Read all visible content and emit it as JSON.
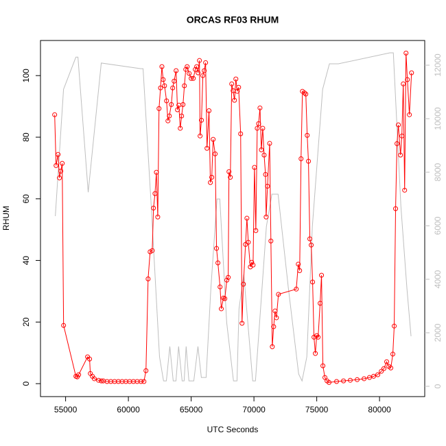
{
  "chart_data": {
    "type": "line",
    "title": "ORCAS RF03 RHUM",
    "x_label": "UTC Seconds",
    "y_label": "RHUM",
    "xlim": [
      53000,
      83600
    ],
    "xticks": [
      55000,
      60000,
      65000,
      70000,
      75000,
      80000
    ],
    "ylim": [
      -4.2,
      111.4
    ],
    "yticks": [
      0,
      20,
      40,
      60,
      80,
      100
    ],
    "y2lim": [
      -385,
      12923
    ],
    "y2ticks": [
      0,
      2000,
      4000,
      6000,
      8000,
      10000,
      12000
    ],
    "series": [
      {
        "axis": "y2",
        "color": "#bebebe",
        "markers": false,
        "x": [
          54181,
          54836,
          55819,
          55984,
          56800,
          57840,
          61000,
          61170,
          61820,
          62480,
          62800,
          63025,
          63300,
          63570,
          63790,
          64000,
          64280,
          64440,
          64600,
          64820,
          65210,
          65540,
          65810,
          66190,
          66570,
          67060,
          67280,
          67830,
          68370,
          68650,
          68810,
          69190,
          69900,
          70120,
          70990,
          71430,
          71920,
          72740,
          73560,
          73830,
          74210,
          74650,
          75470,
          76010,
          76720,
          80820,
          81100,
          81700,
          82180,
          82510
        ],
        "values": [
          6359,
          11100,
          12300,
          12300,
          7250,
          12080,
          11870,
          11870,
          6740,
          1100,
          200,
          200,
          1490,
          200,
          200,
          1490,
          200,
          200,
          1490,
          200,
          200,
          1490,
          330,
          330,
          3670,
          7000,
          7000,
          2380,
          200,
          200,
          2900,
          4180,
          200,
          200,
          5970,
          7180,
          7180,
          3670,
          460,
          200,
          1100,
          5970,
          11100,
          12050,
          12050,
          12460,
          12460,
          6740,
          3670,
          1870
        ]
      },
      {
        "color": "#ff0000",
        "markers": true,
        "x": [
          54130,
          54240,
          54400,
          54510,
          54620,
          54730,
          54840,
          55820,
          55930,
          56040,
          56750,
          56910,
          56970,
          57130,
          57290,
          57620,
          57840,
          58000,
          58300,
          58600,
          58900,
          59200,
          59500,
          59800,
          60100,
          60400,
          60700,
          61000,
          61240,
          61400,
          61570,
          61730,
          61900,
          62000,
          62120,
          62230,
          62340,
          62440,
          62560,
          62670,
          62770,
          62880,
          63040,
          63150,
          63260,
          63420,
          63530,
          63640,
          63800,
          63910,
          64020,
          64130,
          64240,
          64350,
          64460,
          64570,
          64680,
          64840,
          65000,
          65170,
          65330,
          65440,
          65550,
          65660,
          65710,
          65820,
          65930,
          66040,
          66150,
          66260,
          66420,
          66530,
          66640,
          66750,
          66910,
          67020,
          67130,
          67300,
          67400,
          67570,
          67680,
          67840,
          67950,
          68010,
          68120,
          68230,
          68340,
          68450,
          68560,
          68670,
          68780,
          68940,
          69050,
          69160,
          69330,
          69440,
          69550,
          69710,
          69820,
          69930,
          70040,
          70150,
          70260,
          70370,
          70480,
          70590,
          70700,
          70810,
          70920,
          70970,
          71080,
          71250,
          71350,
          71460,
          71570,
          71680,
          71790,
          71950,
          73370,
          73530,
          73640,
          73750,
          73860,
          74020,
          74130,
          74240,
          74340,
          74450,
          74560,
          74670,
          74780,
          74890,
          75000,
          75110,
          75270,
          75380,
          75490,
          75650,
          75820,
          75980,
          76580,
          77130,
          77670,
          78220,
          78770,
          79200,
          79530,
          79860,
          80140,
          80350,
          80570,
          80740,
          80900,
          81060,
          81170,
          81280,
          81390,
          81500,
          81670,
          81780,
          81890,
          82000,
          82110,
          82220,
          82380,
          82550
        ],
        "values": [
          87.3,
          70.8,
          74.4,
          66.8,
          69,
          71.5,
          18.9,
          2.4,
          2.2,
          2.9,
          8.7,
          8,
          3.3,
          2.4,
          1.6,
          1.1,
          0.9,
          0.9,
          0.7,
          0.7,
          0.7,
          0.7,
          0.7,
          0.7,
          0.7,
          0.7,
          0.7,
          0.7,
          0.7,
          4.2,
          34,
          42.8,
          43.2,
          57,
          61.7,
          68.6,
          54.1,
          89.3,
          96,
          102.9,
          98.7,
          96.7,
          91.8,
          85.3,
          86.9,
          90.6,
          96,
          98.2,
          101.6,
          88.9,
          90.4,
          82.9,
          86.9,
          90.6,
          96.7,
          102,
          102.9,
          100.7,
          99.1,
          99.1,
          102,
          102.9,
          100.9,
          104.9,
          80.4,
          85.5,
          100,
          101.6,
          104.2,
          76.4,
          88.6,
          65.3,
          67,
          79.3,
          74.6,
          43.9,
          39.2,
          31.4,
          24.3,
          27.8,
          27.6,
          33.6,
          34.5,
          68.8,
          67,
          97.3,
          95.1,
          92,
          98.9,
          94.9,
          96.2,
          81.1,
          19.6,
          32.3,
          45.2,
          53.7,
          45.9,
          37.9,
          39.4,
          38.5,
          70.2,
          49.7,
          82.9,
          84.4,
          89.5,
          75.9,
          82.9,
          74.2,
          67.9,
          54.1,
          64.1,
          78,
          46.3,
          12,
          18.5,
          23.6,
          21.4,
          29,
          30.7,
          38.8,
          36.7,
          73,
          94.9,
          94.4,
          94,
          80.6,
          72.2,
          47,
          45,
          33,
          15.1,
          9.8,
          15.6,
          15.1,
          26.1,
          35.2,
          5.8,
          2,
          0.9,
          0.4,
          0.7,
          0.9,
          1.1,
          1.3,
          1.6,
          2,
          2.4,
          2.9,
          4,
          4.9,
          7.1,
          5.6,
          5.1,
          9.6,
          18.7,
          56.8,
          77.9,
          84,
          74.2,
          80.4,
          97.3,
          62.8,
          107.3,
          98.7,
          87.3,
          100.9
        ]
      }
    ]
  }
}
